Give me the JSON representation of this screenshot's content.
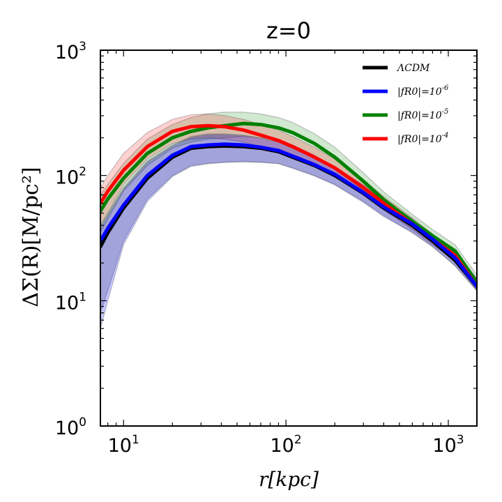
{
  "chart_data": {
    "type": "line",
    "title": "z=0",
    "xlabel": "r[kpc]",
    "ylabel": "ΔΣ(R)[M/pc²]",
    "xscale": "log",
    "yscale": "log",
    "xlim": [
      7.2,
      1500
    ],
    "ylim": [
      1,
      1000
    ],
    "x_ticks": [
      {
        "base": "10",
        "exp": "1"
      },
      {
        "base": "10",
        "exp": "2"
      },
      {
        "base": "10",
        "exp": "3"
      }
    ],
    "y_ticks": [
      {
        "base": "10",
        "exp": "0"
      },
      {
        "base": "10",
        "exp": "1"
      },
      {
        "base": "10",
        "exp": "2"
      },
      {
        "base": "10",
        "exp": "3"
      }
    ],
    "grid": false,
    "legend_position": "top-right",
    "x": [
      7.2,
      8,
      10,
      14,
      20,
      26,
      33,
      42,
      55,
      70,
      90,
      110,
      150,
      200,
      300,
      400,
      600,
      800,
      1100,
      1500
    ],
    "series": [
      {
        "name": "ΛCDM",
        "color": "#000000",
        "values": [
          27,
          35,
          55,
          95,
          140,
          165,
          170,
          172,
          170,
          165,
          155,
          140,
          120,
          100,
          72,
          55,
          40,
          30,
          21,
          13
        ],
        "band_low": [
          8,
          12,
          30,
          65,
          100,
          120,
          125,
          128,
          130,
          128,
          125,
          115,
          100,
          85,
          62,
          48,
          35,
          27,
          19,
          12
        ],
        "band_high": [
          40,
          50,
          80,
          130,
          175,
          205,
          215,
          215,
          210,
          200,
          185,
          165,
          140,
          118,
          84,
          64,
          45,
          33,
          24,
          15
        ]
      },
      {
        "name": "|fR0|=10⁻⁶",
        "label_main": "|fR0|=10",
        "label_exp": "-6",
        "color": "#0000ff",
        "values": [
          30,
          38,
          58,
          100,
          145,
          170,
          175,
          178,
          175,
          168,
          158,
          143,
          122,
          102,
          73,
          56,
          41,
          31,
          22,
          13
        ],
        "band_low": [
          6,
          10,
          28,
          62,
          98,
          118,
          124,
          127,
          128,
          127,
          124,
          114,
          99,
          84,
          61,
          47,
          35,
          27,
          19,
          12
        ],
        "band_high": [
          38,
          48,
          78,
          128,
          172,
          202,
          212,
          213,
          208,
          198,
          183,
          163,
          138,
          116,
          83,
          63,
          44,
          32,
          23,
          14
        ]
      },
      {
        "name": "|fR0|=10⁻⁵",
        "label_main": "|fR0|=10",
        "label_exp": "-5",
        "color": "#008000",
        "values": [
          52,
          65,
          95,
          150,
          200,
          225,
          240,
          250,
          260,
          255,
          240,
          220,
          180,
          140,
          90,
          64,
          43,
          33,
          25,
          14
        ],
        "band_low": [
          35,
          45,
          75,
          120,
          165,
          185,
          195,
          200,
          205,
          200,
          190,
          175,
          145,
          115,
          76,
          55,
          38,
          29,
          22,
          13
        ],
        "band_high": [
          70,
          85,
          125,
          195,
          255,
          290,
          310,
          320,
          320,
          310,
          290,
          265,
          215,
          168,
          105,
          74,
          49,
          37,
          28,
          16
        ]
      },
      {
        "name": "|fR0|=10⁻⁴",
        "label_main": "|fR0|=10",
        "label_exp": "-4",
        "color": "#ff0000",
        "values": [
          60,
          75,
          110,
          170,
          225,
          245,
          250,
          245,
          230,
          210,
          190,
          170,
          140,
          115,
          80,
          60,
          41,
          31,
          23,
          13
        ],
        "band_low": [
          40,
          50,
          85,
          135,
          180,
          195,
          200,
          195,
          185,
          170,
          155,
          140,
          118,
          98,
          70,
          53,
          37,
          28,
          21,
          12
        ],
        "band_high": [
          80,
          100,
          150,
          220,
          280,
          305,
          310,
          300,
          280,
          255,
          230,
          205,
          168,
          135,
          92,
          68,
          46,
          34,
          25,
          15
        ]
      }
    ]
  }
}
